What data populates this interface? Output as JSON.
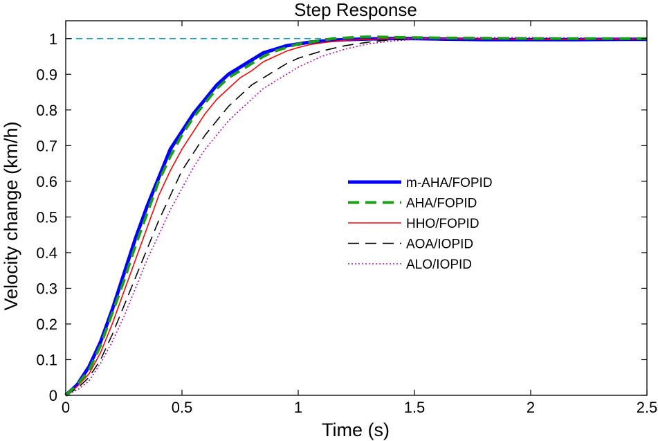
{
  "chart_data": {
    "type": "line",
    "title": "Step Response",
    "xlabel": "Time (s)",
    "ylabel": "Velocity change (km/h)",
    "xlim": [
      0,
      2.5
    ],
    "ylim": [
      0,
      1.05
    ],
    "xticks": [
      0,
      0.5,
      1,
      1.5,
      2,
      2.5
    ],
    "xtick_labels": [
      "0",
      "0.5",
      "1",
      "1.5",
      "2",
      "2.5"
    ],
    "yticks": [
      0,
      0.1,
      0.2,
      0.3,
      0.4,
      0.5,
      0.6,
      0.7,
      0.8,
      0.9,
      1
    ],
    "ytick_labels": [
      "0",
      "0.1",
      "0.2",
      "0.3",
      "0.4",
      "0.5",
      "0.6",
      "0.7",
      "0.8",
      "0.9",
      "1"
    ],
    "grid": false,
    "legend_position": "center-right",
    "reference_line": {
      "y": 1,
      "color": "#00a6c8",
      "style": "dashed"
    },
    "series": [
      {
        "name": "m-AHA/FOPID",
        "color": "#0000ff",
        "style": "solid",
        "x": [
          0,
          0.05,
          0.1,
          0.15,
          0.2,
          0.25,
          0.3,
          0.35,
          0.4,
          0.45,
          0.5,
          0.55,
          0.6,
          0.65,
          0.7,
          0.75,
          0.8,
          0.85,
          0.9,
          0.95,
          1.0,
          1.05,
          1.1,
          1.15,
          1.2,
          1.25,
          1.3,
          1.4,
          1.5,
          1.6,
          1.7,
          1.8,
          2.0,
          2.2,
          2.4,
          2.5
        ],
        "y": [
          0,
          0.03,
          0.08,
          0.15,
          0.24,
          0.34,
          0.44,
          0.53,
          0.61,
          0.69,
          0.74,
          0.79,
          0.83,
          0.87,
          0.9,
          0.92,
          0.94,
          0.96,
          0.97,
          0.98,
          0.985,
          0.99,
          0.993,
          0.995,
          0.997,
          0.998,
          0.999,
          1.0,
          1.0,
          0.999,
          0.998,
          0.997,
          0.997,
          0.997,
          0.998,
          0.998
        ]
      },
      {
        "name": "AHA/FOPID",
        "color": "#1a9e1a",
        "style": "dashed",
        "x": [
          0,
          0.05,
          0.1,
          0.15,
          0.2,
          0.25,
          0.3,
          0.35,
          0.4,
          0.45,
          0.5,
          0.55,
          0.6,
          0.65,
          0.7,
          0.75,
          0.8,
          0.85,
          0.9,
          0.95,
          1.0,
          1.05,
          1.1,
          1.15,
          1.2,
          1.25,
          1.3,
          1.4,
          1.5,
          1.6,
          1.8,
          2.0,
          2.2,
          2.5
        ],
        "y": [
          0,
          0.03,
          0.07,
          0.14,
          0.23,
          0.32,
          0.42,
          0.51,
          0.6,
          0.67,
          0.73,
          0.78,
          0.82,
          0.86,
          0.89,
          0.91,
          0.93,
          0.95,
          0.965,
          0.975,
          0.985,
          0.99,
          0.995,
          1.0,
          1.002,
          1.004,
          1.005,
          1.004,
          1.003,
          1.002,
          1.001,
          1.0,
          1.0,
          1.0
        ]
      },
      {
        "name": "HHO/FOPID",
        "color": "#ff0000",
        "style": "solid",
        "x": [
          0,
          0.05,
          0.1,
          0.15,
          0.2,
          0.25,
          0.3,
          0.35,
          0.4,
          0.45,
          0.5,
          0.55,
          0.6,
          0.65,
          0.7,
          0.75,
          0.8,
          0.85,
          0.9,
          0.95,
          1.0,
          1.05,
          1.1,
          1.15,
          1.2,
          1.3,
          1.4,
          1.5,
          1.6,
          1.8,
          2.0,
          2.2,
          2.5
        ],
        "y": [
          0,
          0.025,
          0.06,
          0.12,
          0.2,
          0.29,
          0.38,
          0.47,
          0.56,
          0.63,
          0.69,
          0.74,
          0.79,
          0.83,
          0.86,
          0.89,
          0.91,
          0.935,
          0.95,
          0.965,
          0.975,
          0.983,
          0.988,
          0.992,
          0.995,
          0.998,
          1.0,
          1.0,
          1.0,
          0.999,
          0.998,
          0.998,
          0.999
        ]
      },
      {
        "name": "AOA/IOPID",
        "color": "#000000",
        "style": "dashed",
        "x": [
          0,
          0.05,
          0.1,
          0.15,
          0.2,
          0.25,
          0.3,
          0.35,
          0.4,
          0.45,
          0.5,
          0.55,
          0.6,
          0.65,
          0.7,
          0.75,
          0.8,
          0.85,
          0.9,
          0.95,
          1.0,
          1.1,
          1.2,
          1.3,
          1.4,
          1.5,
          1.6,
          1.8,
          2.0,
          2.2,
          2.5
        ],
        "y": [
          0,
          0.02,
          0.05,
          0.1,
          0.17,
          0.25,
          0.33,
          0.41,
          0.49,
          0.56,
          0.63,
          0.68,
          0.73,
          0.77,
          0.81,
          0.84,
          0.87,
          0.89,
          0.91,
          0.93,
          0.945,
          0.965,
          0.98,
          0.99,
          0.997,
          1.0,
          1.002,
          1.003,
          1.002,
          1.001,
          1.0
        ]
      },
      {
        "name": "ALO/IOPID",
        "color": "#c000c0",
        "style": "dotted",
        "x": [
          0,
          0.05,
          0.1,
          0.15,
          0.2,
          0.25,
          0.3,
          0.35,
          0.4,
          0.45,
          0.5,
          0.55,
          0.6,
          0.65,
          0.7,
          0.75,
          0.8,
          0.85,
          0.9,
          0.95,
          1.0,
          1.1,
          1.2,
          1.3,
          1.4,
          1.5,
          1.6,
          1.7,
          1.8,
          2.0,
          2.2,
          2.5
        ],
        "y": [
          0,
          0.015,
          0.04,
          0.09,
          0.15,
          0.22,
          0.3,
          0.38,
          0.45,
          0.52,
          0.58,
          0.64,
          0.69,
          0.73,
          0.77,
          0.8,
          0.83,
          0.86,
          0.88,
          0.9,
          0.92,
          0.95,
          0.97,
          0.985,
          0.993,
          0.998,
          1.0,
          1.002,
          1.003,
          1.003,
          1.002,
          1.001
        ]
      }
    ]
  }
}
